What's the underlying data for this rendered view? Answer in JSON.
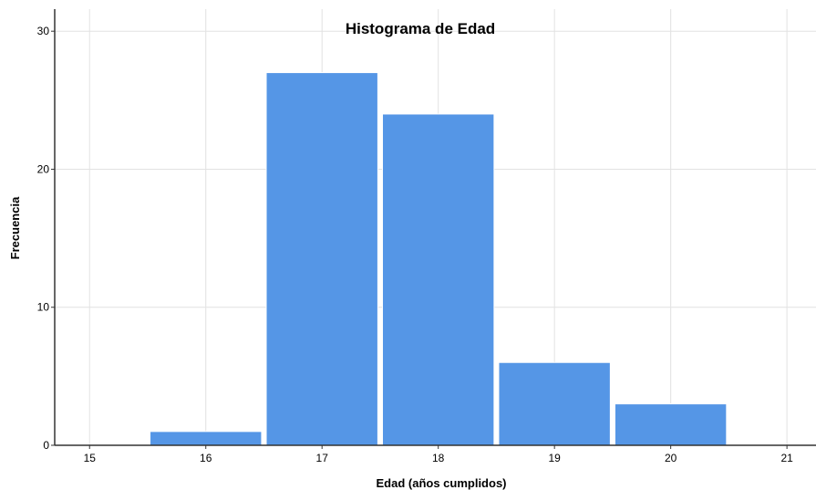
{
  "chart_data": {
    "type": "bar",
    "title": "Histograma de Edad",
    "xlabel": "Edad (años cumplidos)",
    "ylabel": "Frecuencia",
    "x_ticks": [
      15,
      16,
      17,
      18,
      19,
      20,
      21
    ],
    "y_ticks": [
      0,
      10,
      20,
      30
    ],
    "xlim": [
      14.7,
      21.25
    ],
    "ylim": [
      0,
      31.6
    ],
    "bins": [
      {
        "x": 16,
        "value": 1
      },
      {
        "x": 17,
        "value": 27
      },
      {
        "x": 18,
        "value": 24
      },
      {
        "x": 19,
        "value": 6
      },
      {
        "x": 20,
        "value": 3
      }
    ],
    "bar_color": "#5596e6",
    "grid": true,
    "legend": "none"
  }
}
